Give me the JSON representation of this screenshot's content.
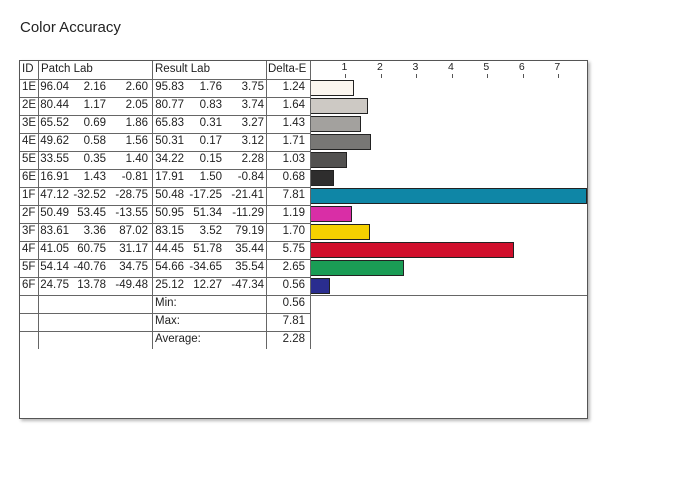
{
  "title": "Color Accuracy",
  "headers": {
    "id": "ID",
    "patch": "Patch Lab",
    "result": "Result Lab",
    "delta": "Delta-E"
  },
  "axis": {
    "ticks": [
      "1",
      "2",
      "3",
      "4",
      "5",
      "6",
      "7"
    ],
    "min": 0,
    "max": 7.81
  },
  "rows": [
    {
      "id": "1E",
      "patch": [
        "96.04",
        "2.16",
        "2.60"
      ],
      "result": [
        "95.83",
        "1.76",
        "3.75"
      ],
      "delta": "1.24",
      "value": 1.24,
      "color": "#fbf6ef"
    },
    {
      "id": "2E",
      "patch": [
        "80.44",
        "1.17",
        "2.05"
      ],
      "result": [
        "80.77",
        "0.83",
        "3.74"
      ],
      "delta": "1.64",
      "value": 1.64,
      "color": "#cdc9c4"
    },
    {
      "id": "3E",
      "patch": [
        "65.52",
        "0.69",
        "1.86"
      ],
      "result": [
        "65.83",
        "0.31",
        "3.27"
      ],
      "delta": "1.43",
      "value": 1.43,
      "color": "#a3a19e"
    },
    {
      "id": "4E",
      "patch": [
        "49.62",
        "0.58",
        "1.56"
      ],
      "result": [
        "50.31",
        "0.17",
        "3.12"
      ],
      "delta": "1.71",
      "value": 1.71,
      "color": "#787775"
    },
    {
      "id": "5E",
      "patch": [
        "33.55",
        "0.35",
        "1.40"
      ],
      "result": [
        "34.22",
        "0.15",
        "2.28"
      ],
      "delta": "1.03",
      "value": 1.03,
      "color": "#525150"
    },
    {
      "id": "6E",
      "patch": [
        "16.91",
        "1.43",
        "-0.81"
      ],
      "result": [
        "17.91",
        "1.50",
        "-0.84"
      ],
      "delta": "0.68",
      "value": 0.68,
      "color": "#2e2d2d"
    },
    {
      "id": "1F",
      "patch": [
        "47.12",
        "-32.52",
        "-28.75"
      ],
      "result": [
        "50.48",
        "-17.25",
        "-21.41"
      ],
      "delta": "7.81",
      "value": 7.81,
      "color": "#0f86a6"
    },
    {
      "id": "2F",
      "patch": [
        "50.49",
        "53.45",
        "-13.55"
      ],
      "result": [
        "50.95",
        "51.34",
        "-11.29"
      ],
      "delta": "1.19",
      "value": 1.19,
      "color": "#d92ea6"
    },
    {
      "id": "3F",
      "patch": [
        "83.61",
        "3.36",
        "87.02"
      ],
      "result": [
        "83.15",
        "3.52",
        "79.19"
      ],
      "delta": "1.70",
      "value": 1.7,
      "color": "#f5d100"
    },
    {
      "id": "4F",
      "patch": [
        "41.05",
        "60.75",
        "31.17"
      ],
      "result": [
        "44.45",
        "51.78",
        "35.44"
      ],
      "delta": "5.75",
      "value": 5.75,
      "color": "#d00f2c"
    },
    {
      "id": "5F",
      "patch": [
        "54.14",
        "-40.76",
        "34.75"
      ],
      "result": [
        "54.66",
        "-34.65",
        "35.54"
      ],
      "delta": "2.65",
      "value": 2.65,
      "color": "#1a9c55"
    },
    {
      "id": "6F",
      "patch": [
        "24.75",
        "13.78",
        "-49.48"
      ],
      "result": [
        "25.12",
        "12.27",
        "-47.34"
      ],
      "delta": "0.56",
      "value": 0.56,
      "color": "#2a2d8f"
    }
  ],
  "summary": [
    {
      "label": "Min:",
      "value": "0.56"
    },
    {
      "label": "Max:",
      "value": "7.81"
    },
    {
      "label": "Average:",
      "value": "2.28"
    }
  ]
}
